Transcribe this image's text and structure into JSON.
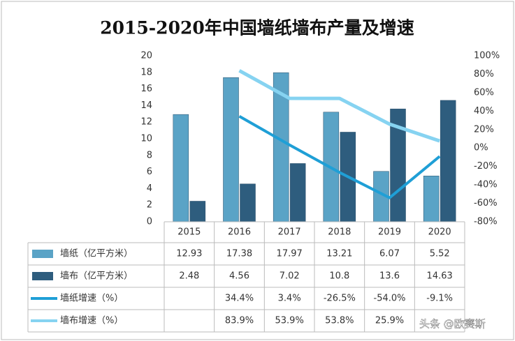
{
  "chart_data": {
    "type": "bar-line-table",
    "title": "2015-2020年中国墙纸墙布产量及增速",
    "categories": [
      "2015",
      "2016",
      "2017",
      "2018",
      "2019",
      "2020"
    ],
    "series": [
      {
        "name": "墙纸（亿平方米）",
        "color": "#5aa3c6",
        "kind": "bar",
        "values": [
          12.93,
          17.38,
          17.97,
          13.21,
          6.07,
          5.52
        ]
      },
      {
        "name": "墙布（亿平方米）",
        "color": "#2e5d7e",
        "kind": "bar",
        "values": [
          2.48,
          4.56,
          7.02,
          10.8,
          13.6,
          14.63
        ]
      },
      {
        "name": "墙纸增速（%）",
        "color": "#1f9fd6",
        "kind": "line",
        "axis": "y2",
        "values": [
          null,
          34.4,
          3.4,
          -26.5,
          -54.0,
          -9.1
        ],
        "value_labels": [
          null,
          "34.4%",
          "3.4%",
          "-26.5%",
          "-54.0%",
          "-9.1%"
        ]
      },
      {
        "name": "墙布增速（%）",
        "color": "#86d3f1",
        "kind": "line",
        "axis": "y2",
        "values": [
          null,
          83.9,
          53.9,
          53.8,
          25.9,
          7.6
        ],
        "value_labels": [
          null,
          "83.9%",
          "53.9%",
          "53.8%",
          "25.9%",
          null
        ]
      }
    ],
    "ylim": [
      0,
      20
    ],
    "yticks": [
      0,
      2,
      4,
      6,
      8,
      10,
      12,
      14,
      16,
      18,
      20
    ],
    "y2lim": [
      -80,
      100
    ],
    "y2ticks": [
      {
        "value": -80,
        "label": "-80%"
      },
      {
        "value": -60,
        "label": "-60%"
      },
      {
        "value": -40,
        "label": "-40%"
      },
      {
        "value": -20,
        "label": "-20%"
      },
      {
        "value": 0,
        "label": "0%"
      },
      {
        "value": 20,
        "label": "20%"
      },
      {
        "value": 40,
        "label": "40%"
      },
      {
        "value": 60,
        "label": "60%"
      },
      {
        "value": 80,
        "label": "80%"
      },
      {
        "value": 100,
        "label": "100%"
      }
    ],
    "grid": false,
    "watermark": "头条 @欧赛斯"
  }
}
